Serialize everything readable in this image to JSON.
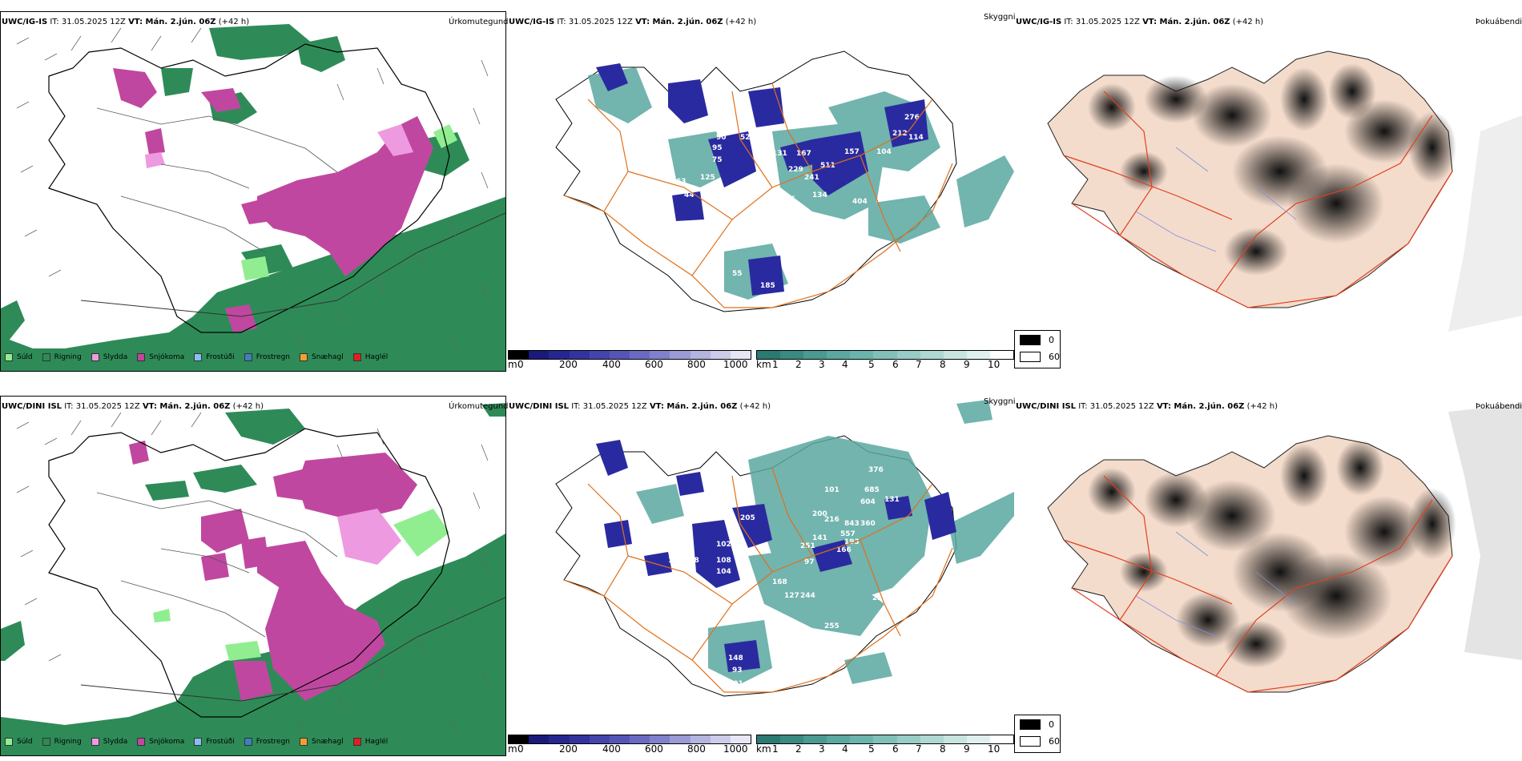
{
  "rows": [
    {
      "model": "UWC/IG-IS",
      "run_label": "IT: 31.05.2025 12Z",
      "vt_label": "VT: Mán. 2.jún. 06Z",
      "lead": "(+42 h)"
    },
    {
      "model": "UWC/DINI ISL",
      "run_label": "IT: 31.05.2025 12Z",
      "vt_label": "VT: Mán. 2.jún. 06Z",
      "lead": "(+42 h)"
    }
  ],
  "panel_titles": {
    "precip": "Úrkomutegund",
    "cloud": "Skyggni",
    "fog": "Þokuábendi"
  },
  "precip_legend": [
    {
      "label": "Súld",
      "color": "#90ee90"
    },
    {
      "label": "Rigning",
      "color": "#2e8b57"
    },
    {
      "label": "Slydda",
      "color": "#ee9ae0"
    },
    {
      "label": "Snjókoma",
      "color": "#c0479f"
    },
    {
      "label": "Frostúði",
      "color": "#87bfef"
    },
    {
      "label": "Frostregn",
      "color": "#3f7fbf"
    },
    {
      "label": "Snæhagl",
      "color": "#f0a030"
    },
    {
      "label": "Haglél",
      "color": "#e02020"
    }
  ],
  "cloud_base_bar": {
    "unit": "m",
    "ticks": [
      "0",
      "200",
      "400",
      "600",
      "800",
      "1000"
    ],
    "colors": [
      "#000000",
      "#1a1a7a",
      "#26268f",
      "#3333a0",
      "#4444ad",
      "#5555b8",
      "#6a6ac3",
      "#8080cc",
      "#9a9ad6",
      "#b4b4e0",
      "#ccccea",
      "#e6e6f5"
    ]
  },
  "visibility_bar": {
    "unit": "km",
    "ticks": [
      "1",
      "2",
      "3",
      "4",
      "5",
      "6",
      "7",
      "8",
      "9",
      "10"
    ],
    "colors": [
      "#2a7a72",
      "#3a8a82",
      "#4a9a92",
      "#5aa8a0",
      "#6ab4ac",
      "#80c0b8",
      "#98ccc6",
      "#b0d8d2",
      "#c8e4e0",
      "#e0f0ee",
      "#ffffff"
    ]
  },
  "fog_legend": [
    {
      "label": "0",
      "color": "#000000"
    },
    {
      "label": "60",
      "color": "#ffffff"
    }
  ],
  "colors": {
    "rain": "#2e8b57",
    "snow": "#c0479f",
    "sleet": "#ee9ae0",
    "drizzle": "#90ee90",
    "cloud_dark": "#2a2aa0",
    "cloud_teal": "#5aa8a0",
    "road": "#e0701a",
    "fog_land": "#f4dccc"
  }
}
